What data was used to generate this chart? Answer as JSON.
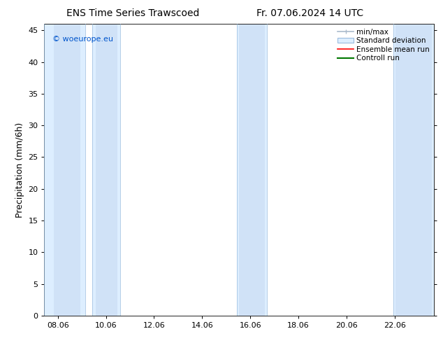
{
  "title_left": "ENS Time Series Trawscoed",
  "title_right": "Fr. 07.06.2024 14 UTC",
  "ylabel": "Precipitation (mm/6h)",
  "watermark": "© woeurope.eu",
  "watermark_color": "#0055cc",
  "xlim_left": 7.5,
  "xlim_right": 23.7,
  "ylim_bottom": 0,
  "ylim_top": 46,
  "xticks": [
    8.06,
    10.06,
    12.06,
    14.06,
    16.06,
    18.06,
    20.06,
    22.06
  ],
  "xtick_labels": [
    "08.06",
    "10.06",
    "12.06",
    "14.06",
    "16.06",
    "18.06",
    "20.06",
    "22.06"
  ],
  "yticks": [
    0,
    5,
    10,
    15,
    20,
    25,
    30,
    35,
    40,
    45
  ],
  "band_outer": [
    [
      7.5,
      9.2
    ],
    [
      9.5,
      10.65
    ],
    [
      15.5,
      16.75
    ],
    [
      22.0,
      23.7
    ]
  ],
  "band_inner": [
    [
      7.9,
      9.0
    ],
    [
      9.65,
      10.55
    ],
    [
      15.6,
      16.65
    ],
    [
      22.1,
      23.6
    ]
  ],
  "band_outer_color": "#ddeeff",
  "band_inner_color": "#c5d8f0",
  "band_border_color": "#99bbdd",
  "bg_color": "#ffffff",
  "plot_bg_color": "#ffffff",
  "legend_labels": [
    "min/max",
    "Standard deviation",
    "Ensemble mean run",
    "Controll run"
  ],
  "legend_colors": [
    "#aabbcc",
    "#bbccdd",
    "#ff0000",
    "#007700"
  ],
  "title_fontsize": 10,
  "ylabel_fontsize": 9,
  "tick_fontsize": 8,
  "legend_fontsize": 7.5
}
